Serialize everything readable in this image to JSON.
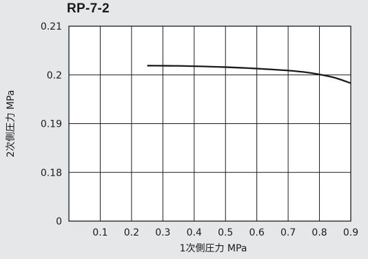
{
  "chart_data": {
    "type": "line",
    "title": "RP-7-2",
    "xlabel": "1次側圧力 MPa",
    "ylabel": "2次側圧力 MPa",
    "xlim": [
      0,
      0.9
    ],
    "ylim": [
      0.17,
      0.21
    ],
    "xticks": [
      0.1,
      0.2,
      0.3,
      0.4,
      0.5,
      0.6,
      0.7,
      0.8,
      0.9
    ],
    "yticks": [
      0.18,
      0.19,
      0.2,
      0.21
    ],
    "x_tick_labels": [
      "0.1",
      "0.2",
      "0.3",
      "0.4",
      "0.5",
      "0.6",
      "0.7",
      "0.8",
      "0.9"
    ],
    "y_tick_labels": [
      "0.18",
      "0.19",
      "0.2",
      "0.21"
    ],
    "origin_label": "0",
    "grid": true,
    "series": [
      {
        "x": [
          0.25,
          0.3,
          0.35,
          0.4,
          0.45,
          0.5,
          0.55,
          0.6,
          0.65,
          0.7,
          0.75,
          0.8,
          0.85,
          0.9
        ],
        "y": [
          0.2019,
          0.20188,
          0.20185,
          0.20179,
          0.2017,
          0.2016,
          0.20146,
          0.2013,
          0.20111,
          0.2009,
          0.2006,
          0.2001,
          0.1994,
          0.1983
        ],
        "color": "#1a1a1a"
      }
    ]
  }
}
